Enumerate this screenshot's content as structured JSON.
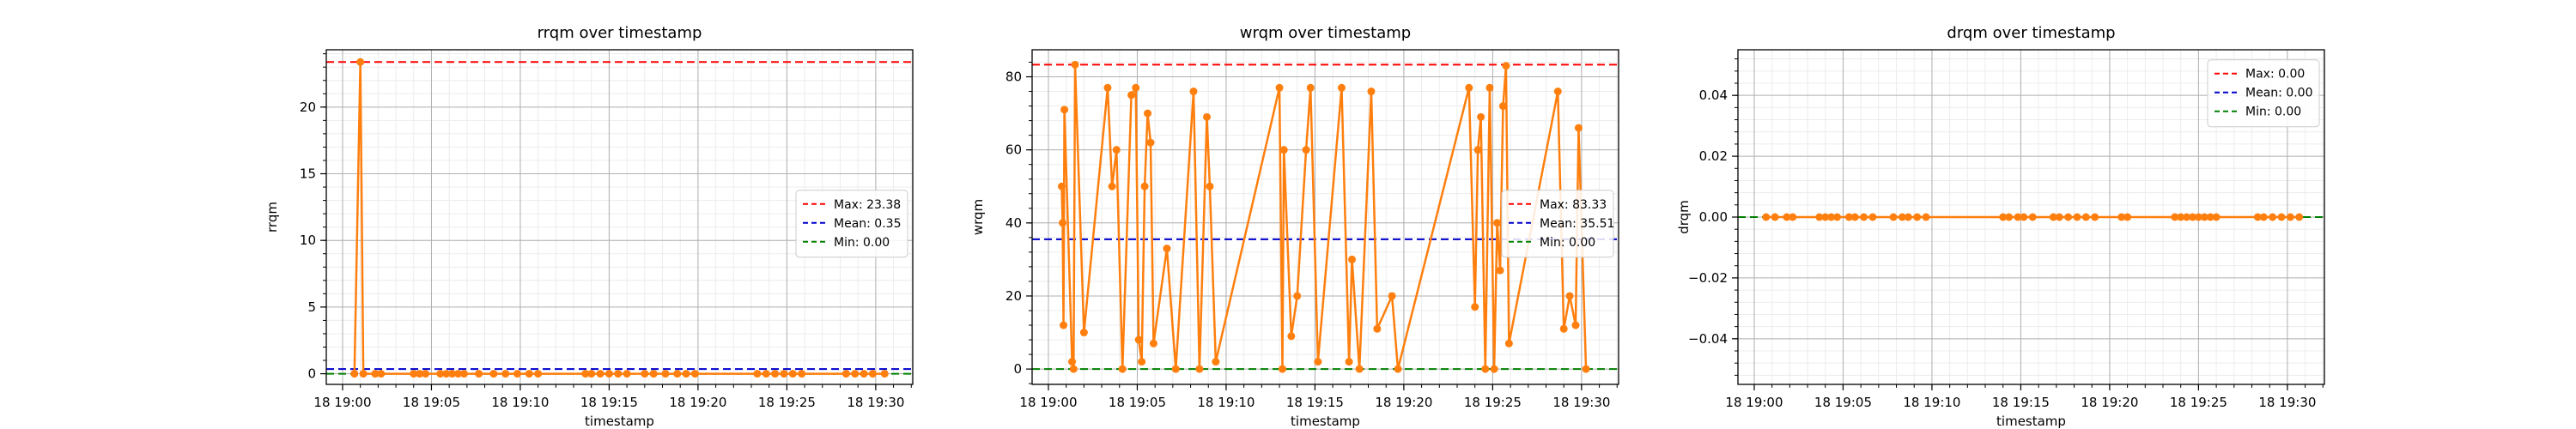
{
  "chart_data": [
    {
      "type": "line",
      "title": "rrqm over timestamp",
      "xlabel": "timestamp",
      "ylabel": "rrqm",
      "xlim": [
        "18 18:59:05",
        "18 19:32:05"
      ],
      "ylim": [
        -0.8,
        24.3
      ],
      "xticks": [
        "18 19:00",
        "18 19:05",
        "18 19:10",
        "18 19:15",
        "18 19:20",
        "18 19:25",
        "18 19:30"
      ],
      "yticks": [
        "0",
        "5",
        "10",
        "15",
        "20"
      ],
      "legend_position": "center-right",
      "grid": true,
      "series": [
        {
          "color": "#ff7f0e",
          "points": [
            [
              "18 19:00:40",
              0.0
            ],
            [
              "18 19:01:00",
              23.38
            ],
            [
              "18 19:01:10",
              0.0
            ],
            [
              "18 19:01:50",
              0.0
            ],
            [
              "18 19:02:10",
              0.0
            ],
            [
              "18 19:04:00",
              0.0
            ],
            [
              "18 19:04:20",
              0.0
            ],
            [
              "18 19:04:40",
              0.0
            ],
            [
              "18 19:05:30",
              0.0
            ],
            [
              "18 19:05:50",
              0.0
            ],
            [
              "18 19:06:10",
              0.0
            ],
            [
              "18 19:06:30",
              0.0
            ],
            [
              "18 19:06:50",
              0.0
            ],
            [
              "18 19:07:40",
              0.0
            ],
            [
              "18 19:08:30",
              0.0
            ],
            [
              "18 19:09:10",
              0.0
            ],
            [
              "18 19:09:50",
              0.0
            ],
            [
              "18 19:10:30",
              0.0
            ],
            [
              "18 19:11:00",
              0.0
            ],
            [
              "18 19:13:40",
              0.0
            ],
            [
              "18 19:14:00",
              0.0
            ],
            [
              "18 19:14:30",
              0.0
            ],
            [
              "18 19:15:00",
              0.0
            ],
            [
              "18 19:15:30",
              0.0
            ],
            [
              "18 19:16:00",
              0.0
            ],
            [
              "18 19:17:00",
              0.0
            ],
            [
              "18 19:17:30",
              0.0
            ],
            [
              "18 19:18:10",
              0.0
            ],
            [
              "18 19:18:50",
              0.0
            ],
            [
              "18 19:19:20",
              0.0
            ],
            [
              "18 19:19:50",
              0.0
            ],
            [
              "18 19:23:20",
              0.0
            ],
            [
              "18 19:23:50",
              0.0
            ],
            [
              "18 19:24:20",
              0.0
            ],
            [
              "18 19:24:50",
              0.0
            ],
            [
              "18 19:25:20",
              0.0
            ],
            [
              "18 19:25:50",
              0.0
            ],
            [
              "18 19:28:20",
              0.0
            ],
            [
              "18 19:28:50",
              0.0
            ],
            [
              "18 19:29:20",
              0.0
            ],
            [
              "18 19:29:50",
              0.0
            ],
            [
              "18 19:30:30",
              0.0
            ]
          ]
        }
      ],
      "reference_lines": [
        {
          "label": "Max: 23.38",
          "value": 23.38,
          "color": "#ff0000"
        },
        {
          "label": "Mean: 0.35",
          "value": 0.35,
          "color": "#0000cc"
        },
        {
          "label": "Min: 0.00",
          "value": 0.0,
          "color": "#008000"
        }
      ]
    },
    {
      "type": "line",
      "title": "wrqm over timestamp",
      "xlabel": "timestamp",
      "ylabel": "wrqm",
      "xlim": [
        "18 18:59:05",
        "18 19:32:05"
      ],
      "ylim": [
        -4.2,
        87.4
      ],
      "xticks": [
        "18 19:00",
        "18 19:05",
        "18 19:10",
        "18 19:15",
        "18 19:20",
        "18 19:25",
        "18 19:30"
      ],
      "yticks": [
        "0",
        "20",
        "40",
        "60",
        "80"
      ],
      "legend_position": "center-right",
      "grid": true,
      "series": [
        {
          "color": "#ff7f0e",
          "points": [
            [
              "18 19:00:45",
              50.0
            ],
            [
              "18 19:00:48",
              40.0
            ],
            [
              "18 19:00:51",
              12.0
            ],
            [
              "18 19:00:54",
              71.0
            ],
            [
              "18 19:01:20",
              2.0
            ],
            [
              "18 19:01:25",
              0.0
            ],
            [
              "18 19:01:30",
              83.33
            ],
            [
              "18 19:02:00",
              10.0
            ],
            [
              "18 19:03:20",
              77.0
            ],
            [
              "18 19:03:35",
              50.0
            ],
            [
              "18 19:03:50",
              60.0
            ],
            [
              "18 19:04:10",
              0.0
            ],
            [
              "18 19:04:40",
              75.0
            ],
            [
              "18 19:04:55",
              77.0
            ],
            [
              "18 19:05:05",
              8.0
            ],
            [
              "18 19:05:15",
              2.0
            ],
            [
              "18 19:05:25",
              50.0
            ],
            [
              "18 19:05:35",
              70.0
            ],
            [
              "18 19:05:45",
              62.0
            ],
            [
              "18 19:05:55",
              7.0
            ],
            [
              "18 19:06:40",
              33.0
            ],
            [
              "18 19:07:10",
              0.0
            ],
            [
              "18 19:08:10",
              76.0
            ],
            [
              "18 19:08:30",
              0.0
            ],
            [
              "18 19:08:55",
              69.0
            ],
            [
              "18 19:09:05",
              50.0
            ],
            [
              "18 19:09:25",
              2.0
            ],
            [
              "18 19:13:00",
              77.0
            ],
            [
              "18 19:13:10",
              0.0
            ],
            [
              "18 19:13:15",
              60.0
            ],
            [
              "18 19:13:40",
              9.0
            ],
            [
              "18 19:14:00",
              20.0
            ],
            [
              "18 19:14:30",
              60.0
            ],
            [
              "18 19:14:45",
              77.0
            ],
            [
              "18 19:15:10",
              2.0
            ],
            [
              "18 19:16:30",
              77.0
            ],
            [
              "18 19:16:55",
              2.0
            ],
            [
              "18 19:17:05",
              30.0
            ],
            [
              "18 19:17:30",
              0.0
            ],
            [
              "18 19:18:10",
              76.0
            ],
            [
              "18 19:18:30",
              11.0
            ],
            [
              "18 19:19:20",
              20.0
            ],
            [
              "18 19:19:40",
              0.0
            ],
            [
              "18 19:23:40",
              77.0
            ],
            [
              "18 19:24:00",
              17.0
            ],
            [
              "18 19:24:10",
              60.0
            ],
            [
              "18 19:24:20",
              69.0
            ],
            [
              "18 19:24:35",
              0.0
            ],
            [
              "18 19:24:50",
              77.0
            ],
            [
              "18 19:25:05",
              0.0
            ],
            [
              "18 19:25:15",
              40.0
            ],
            [
              "18 19:25:25",
              27.0
            ],
            [
              "18 19:25:35",
              72.0
            ],
            [
              "18 19:25:45",
              83.0
            ],
            [
              "18 19:25:55",
              7.0
            ],
            [
              "18 19:28:40",
              76.0
            ],
            [
              "18 19:29:00",
              11.0
            ],
            [
              "18 19:29:20",
              20.0
            ],
            [
              "18 19:29:40",
              12.0
            ],
            [
              "18 19:29:50",
              66.0
            ],
            [
              "18 19:30:15",
              0.0
            ]
          ]
        }
      ],
      "reference_lines": [
        {
          "label": "Max: 83.33",
          "value": 83.33,
          "color": "#ff0000"
        },
        {
          "label": "Mean: 35.51",
          "value": 35.51,
          "color": "#0000cc"
        },
        {
          "label": "Min: 0.00",
          "value": 0.0,
          "color": "#008000"
        }
      ]
    },
    {
      "type": "line",
      "title": "drqm over timestamp",
      "xlabel": "timestamp",
      "ylabel": "drqm",
      "xlim": [
        "18 18:59:05",
        "18 19:32:05"
      ],
      "ylim": [
        -0.055,
        0.055
      ],
      "xticks": [
        "18 19:00",
        "18 19:05",
        "18 19:10",
        "18 19:15",
        "18 19:20",
        "18 19:25",
        "18 19:30"
      ],
      "yticks": [
        "−0.04",
        "−0.02",
        "0.00",
        "0.02",
        "0.04"
      ],
      "legend_position": "top-right",
      "grid": true,
      "series": [
        {
          "color": "#ff7f0e",
          "points": [
            [
              "18 19:00:40",
              0.0
            ],
            [
              "18 19:01:10",
              0.0
            ],
            [
              "18 19:01:50",
              0.0
            ],
            [
              "18 19:02:10",
              0.0
            ],
            [
              "18 19:03:40",
              0.0
            ],
            [
              "18 19:04:00",
              0.0
            ],
            [
              "18 19:04:20",
              0.0
            ],
            [
              "18 19:04:40",
              0.0
            ],
            [
              "18 19:05:20",
              0.0
            ],
            [
              "18 19:05:40",
              0.0
            ],
            [
              "18 19:06:10",
              0.0
            ],
            [
              "18 19:06:40",
              0.0
            ],
            [
              "18 19:07:50",
              0.0
            ],
            [
              "18 19:08:20",
              0.0
            ],
            [
              "18 19:08:40",
              0.0
            ],
            [
              "18 19:09:10",
              0.0
            ],
            [
              "18 19:09:40",
              0.0
            ],
            [
              "18 19:14:00",
              0.0
            ],
            [
              "18 19:14:20",
              0.0
            ],
            [
              "18 19:14:50",
              0.0
            ],
            [
              "18 19:15:10",
              0.0
            ],
            [
              "18 19:15:40",
              0.0
            ],
            [
              "18 19:16:50",
              0.0
            ],
            [
              "18 19:17:10",
              0.0
            ],
            [
              "18 19:17:40",
              0.0
            ],
            [
              "18 19:18:10",
              0.0
            ],
            [
              "18 19:18:40",
              0.0
            ],
            [
              "18 19:19:10",
              0.0
            ],
            [
              "18 19:20:40",
              0.0
            ],
            [
              "18 19:21:00",
              0.0
            ],
            [
              "18 19:23:40",
              0.0
            ],
            [
              "18 19:24:00",
              0.0
            ],
            [
              "18 19:24:20",
              0.0
            ],
            [
              "18 19:24:40",
              0.0
            ],
            [
              "18 19:25:00",
              0.0
            ],
            [
              "18 19:25:20",
              0.0
            ],
            [
              "18 19:25:40",
              0.0
            ],
            [
              "18 19:26:00",
              0.0
            ],
            [
              "18 19:28:20",
              0.0
            ],
            [
              "18 19:28:40",
              0.0
            ],
            [
              "18 19:29:10",
              0.0
            ],
            [
              "18 19:29:40",
              0.0
            ],
            [
              "18 19:30:10",
              0.0
            ],
            [
              "18 19:30:40",
              0.0
            ]
          ]
        }
      ],
      "reference_lines": [
        {
          "label": "Max: 0.00",
          "value": 0.0,
          "color": "#ff0000"
        },
        {
          "label": "Mean: 0.00",
          "value": 0.0,
          "color": "#0000cc"
        },
        {
          "label": "Min: 0.00",
          "value": 0.0,
          "color": "#008000"
        }
      ]
    }
  ]
}
